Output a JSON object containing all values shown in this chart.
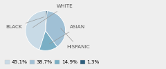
{
  "labels": [
    "WHITE",
    "ASIAN",
    "HISPANIC",
    "BLACK"
  ],
  "values": [
    45.1,
    14.9,
    38.7,
    1.3
  ],
  "colors": [
    "#c8dae6",
    "#7aafc5",
    "#a0c0d5",
    "#2e5f7c"
  ],
  "startangle": 90,
  "legend_order": [
    0,
    2,
    1,
    3
  ],
  "legend_labels": [
    "45.1%",
    "38.7%",
    "14.9%",
    "1.3%"
  ],
  "legend_colors": [
    "#c8dae6",
    "#7aafc5",
    "#a0c0d5",
    "#2e5f7c"
  ],
  "label_fontsize": 5.2,
  "legend_fontsize": 5.2,
  "bg_color": "#eeeeee",
  "label_color": "#555555",
  "line_color": "#999999"
}
